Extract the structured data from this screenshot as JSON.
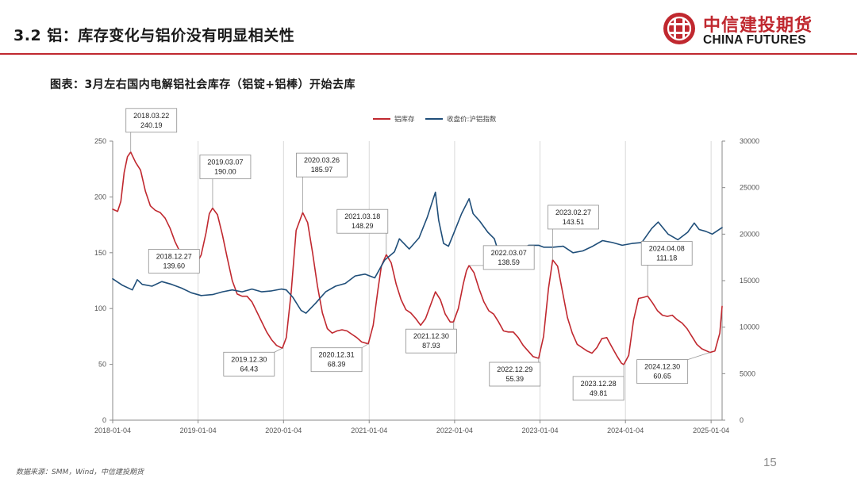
{
  "header": {
    "title": "3.2 铝：库存变化与铝价没有明显相关性",
    "logo_cn": "中信建投期货",
    "logo_en": "CHINA FUTURES",
    "logo_icon": "china-futures-logo-icon",
    "accent_color": "#c0282f"
  },
  "caption": "图表：3月左右国内电解铝社会库存（铝锭+铝棒）开始去库",
  "source": "数据来源：SMM，Wind，中信建投期货",
  "page_number": "15",
  "chart_data": {
    "type": "line",
    "title": "图表：3月左右国内电解铝社会库存（铝锭+铝棒）开始去库",
    "x_tick_labels": [
      "2018-01-04",
      "2019-01-04",
      "2020-01-04",
      "2021-01-04",
      "2022-01-04",
      "2023-01-04",
      "2024-01-04",
      "2025-01-04"
    ],
    "x_range": [
      "2018-01-04",
      "2025-02-20"
    ],
    "y_left": {
      "range": [
        0,
        250
      ],
      "ticks": [
        0,
        50,
        100,
        150,
        200,
        250
      ],
      "tick_labels": [
        "0",
        "50",
        "100",
        "150",
        "200",
        "250"
      ]
    },
    "y_right": {
      "range": [
        0,
        30000
      ],
      "ticks": [
        0,
        5000,
        10000,
        15000,
        20000,
        25000,
        30000
      ],
      "tick_labels": [
        "0",
        "5000",
        "10000",
        "15000",
        "20000",
        "25000",
        "30000"
      ]
    },
    "vertical_gridlines": true,
    "horizontal_gridlines": false,
    "legend_position": "top-center",
    "series": [
      {
        "name": "铝库存",
        "axis": "left",
        "color": "#c0282f",
        "points": [
          [
            "2018-01-04",
            189
          ],
          [
            "2018-01-25",
            187
          ],
          [
            "2018-02-08",
            196
          ],
          [
            "2018-02-22",
            222
          ],
          [
            "2018-03-08",
            236
          ],
          [
            "2018-03-22",
            240.19
          ],
          [
            "2018-04-12",
            231
          ],
          [
            "2018-05-03",
            224
          ],
          [
            "2018-05-24",
            205
          ],
          [
            "2018-06-14",
            192
          ],
          [
            "2018-07-05",
            188
          ],
          [
            "2018-07-26",
            186
          ],
          [
            "2018-08-16",
            181
          ],
          [
            "2018-09-06",
            172
          ],
          [
            "2018-09-27",
            160
          ],
          [
            "2018-10-18",
            151
          ],
          [
            "2018-11-08",
            143
          ],
          [
            "2018-12-06",
            139
          ],
          [
            "2018-12-27",
            139.6
          ],
          [
            "2019-01-17",
            148
          ],
          [
            "2019-02-07",
            168
          ],
          [
            "2019-02-21",
            185
          ],
          [
            "2019-03-07",
            190.0
          ],
          [
            "2019-03-28",
            184
          ],
          [
            "2019-04-18",
            166
          ],
          [
            "2019-05-09",
            145
          ],
          [
            "2019-05-30",
            125
          ],
          [
            "2019-06-20",
            113
          ],
          [
            "2019-07-11",
            111
          ],
          [
            "2019-08-01",
            111
          ],
          [
            "2019-08-22",
            106
          ],
          [
            "2019-09-12",
            97
          ],
          [
            "2019-10-03",
            88
          ],
          [
            "2019-10-24",
            79
          ],
          [
            "2019-11-14",
            72
          ],
          [
            "2019-12-05",
            67
          ],
          [
            "2019-12-30",
            64.43
          ],
          [
            "2020-01-16",
            74
          ],
          [
            "2020-02-06",
            115
          ],
          [
            "2020-02-27",
            170
          ],
          [
            "2020-03-26",
            185.97
          ],
          [
            "2020-04-16",
            177
          ],
          [
            "2020-05-07",
            150
          ],
          [
            "2020-05-28",
            120
          ],
          [
            "2020-06-18",
            96
          ],
          [
            "2020-07-09",
            82
          ],
          [
            "2020-07-30",
            78
          ],
          [
            "2020-08-20",
            80
          ],
          [
            "2020-09-10",
            81
          ],
          [
            "2020-10-01",
            80
          ],
          [
            "2020-10-22",
            77
          ],
          [
            "2020-11-12",
            74
          ],
          [
            "2020-12-03",
            70
          ],
          [
            "2020-12-31",
            68.39
          ],
          [
            "2021-01-21",
            85
          ],
          [
            "2021-02-11",
            118
          ],
          [
            "2021-02-25",
            138
          ],
          [
            "2021-03-18",
            148.29
          ],
          [
            "2021-04-08",
            141
          ],
          [
            "2021-04-29",
            122
          ],
          [
            "2021-05-20",
            108
          ],
          [
            "2021-06-10",
            99
          ],
          [
            "2021-07-01",
            96
          ],
          [
            "2021-07-22",
            91
          ],
          [
            "2021-08-12",
            85
          ],
          [
            "2021-09-02",
            91
          ],
          [
            "2021-09-23",
            103
          ],
          [
            "2021-10-14",
            115
          ],
          [
            "2021-11-04",
            108
          ],
          [
            "2021-11-25",
            95
          ],
          [
            "2021-12-16",
            88
          ],
          [
            "2021-12-30",
            87.93
          ],
          [
            "2022-01-20",
            100
          ],
          [
            "2022-02-10",
            122
          ],
          [
            "2022-02-24",
            134
          ],
          [
            "2022-03-07",
            138.59
          ],
          [
            "2022-03-28",
            132
          ],
          [
            "2022-04-18",
            118
          ],
          [
            "2022-05-09",
            106
          ],
          [
            "2022-05-30",
            98
          ],
          [
            "2022-06-20",
            95
          ],
          [
            "2022-07-11",
            88
          ],
          [
            "2022-08-01",
            80
          ],
          [
            "2022-08-22",
            79
          ],
          [
            "2022-09-12",
            79
          ],
          [
            "2022-10-03",
            74
          ],
          [
            "2022-10-24",
            67
          ],
          [
            "2022-11-14",
            62
          ],
          [
            "2022-12-05",
            57
          ],
          [
            "2022-12-29",
            55.39
          ],
          [
            "2023-01-19",
            75
          ],
          [
            "2023-02-09",
            118
          ],
          [
            "2023-02-27",
            143.51
          ],
          [
            "2023-03-20",
            138
          ],
          [
            "2023-04-10",
            115
          ],
          [
            "2023-05-01",
            92
          ],
          [
            "2023-05-22",
            78
          ],
          [
            "2023-06-12",
            68
          ],
          [
            "2023-07-03",
            65
          ],
          [
            "2023-07-24",
            62
          ],
          [
            "2023-08-14",
            60
          ],
          [
            "2023-09-04",
            65
          ],
          [
            "2023-09-25",
            73
          ],
          [
            "2023-10-16",
            74
          ],
          [
            "2023-11-06",
            66
          ],
          [
            "2023-11-27",
            58
          ],
          [
            "2023-12-18",
            51
          ],
          [
            "2023-12-28",
            49.81
          ],
          [
            "2024-01-18",
            58
          ],
          [
            "2024-02-08",
            90
          ],
          [
            "2024-02-29",
            109
          ],
          [
            "2024-03-21",
            110
          ],
          [
            "2024-04-08",
            111.18
          ],
          [
            "2024-04-29",
            105
          ],
          [
            "2024-05-20",
            98
          ],
          [
            "2024-06-10",
            94
          ],
          [
            "2024-07-01",
            93
          ],
          [
            "2024-07-22",
            94
          ],
          [
            "2024-08-12",
            90
          ],
          [
            "2024-09-02",
            87
          ],
          [
            "2024-09-23",
            82
          ],
          [
            "2024-10-14",
            75
          ],
          [
            "2024-11-04",
            68
          ],
          [
            "2024-11-25",
            64
          ],
          [
            "2024-12-16",
            62
          ],
          [
            "2024-12-30",
            60.65
          ],
          [
            "2025-01-20",
            62
          ],
          [
            "2025-02-10",
            78
          ],
          [
            "2025-02-20",
            102
          ]
        ]
      },
      {
        "name": "收盘价:沪铝指数",
        "axis": "right",
        "color": "#1f4e79",
        "points": [
          [
            "2018-01-04",
            15200
          ],
          [
            "2018-02-15",
            14500
          ],
          [
            "2018-03-29",
            14000
          ],
          [
            "2018-04-19",
            15100
          ],
          [
            "2018-05-10",
            14600
          ],
          [
            "2018-06-21",
            14400
          ],
          [
            "2018-08-02",
            14900
          ],
          [
            "2018-09-13",
            14600
          ],
          [
            "2018-10-25",
            14200
          ],
          [
            "2018-12-06",
            13700
          ],
          [
            "2019-01-17",
            13400
          ],
          [
            "2019-03-07",
            13500
          ],
          [
            "2019-04-18",
            13800
          ],
          [
            "2019-05-30",
            14000
          ],
          [
            "2019-07-11",
            13800
          ],
          [
            "2019-08-22",
            14100
          ],
          [
            "2019-10-03",
            13800
          ],
          [
            "2019-11-14",
            13900
          ],
          [
            "2019-12-26",
            14100
          ],
          [
            "2020-01-16",
            14000
          ],
          [
            "2020-02-13",
            13200
          ],
          [
            "2020-03-19",
            11800
          ],
          [
            "2020-04-09",
            11500
          ],
          [
            "2020-05-21",
            12600
          ],
          [
            "2020-07-02",
            13800
          ],
          [
            "2020-08-13",
            14400
          ],
          [
            "2020-09-24",
            14700
          ],
          [
            "2020-11-05",
            15500
          ],
          [
            "2020-12-17",
            15700
          ],
          [
            "2021-01-28",
            15300
          ],
          [
            "2021-03-11",
            17200
          ],
          [
            "2021-04-22",
            18100
          ],
          [
            "2021-05-13",
            19500
          ],
          [
            "2021-06-24",
            18400
          ],
          [
            "2021-08-05",
            19600
          ],
          [
            "2021-09-09",
            21800
          ],
          [
            "2021-10-14",
            24500
          ],
          [
            "2021-10-28",
            21500
          ],
          [
            "2021-11-18",
            19000
          ],
          [
            "2021-12-09",
            18700
          ],
          [
            "2021-12-30",
            20000
          ],
          [
            "2022-02-03",
            22200
          ],
          [
            "2022-03-07",
            23800
          ],
          [
            "2022-03-24",
            22200
          ],
          [
            "2022-04-21",
            21400
          ],
          [
            "2022-05-26",
            20200
          ],
          [
            "2022-06-23",
            19500
          ],
          [
            "2022-07-14",
            17800
          ],
          [
            "2022-08-25",
            18200
          ],
          [
            "2022-10-06",
            18300
          ],
          [
            "2022-11-17",
            18800
          ],
          [
            "2022-12-29",
            18800
          ],
          [
            "2023-01-19",
            18600
          ],
          [
            "2023-03-02",
            18600
          ],
          [
            "2023-04-13",
            18700
          ],
          [
            "2023-05-25",
            18000
          ],
          [
            "2023-07-06",
            18200
          ],
          [
            "2023-08-17",
            18700
          ],
          [
            "2023-09-28",
            19300
          ],
          [
            "2023-11-09",
            19100
          ],
          [
            "2023-12-21",
            18800
          ],
          [
            "2024-02-01",
            19000
          ],
          [
            "2024-03-14",
            19100
          ],
          [
            "2024-04-25",
            20600
          ],
          [
            "2024-05-23",
            21300
          ],
          [
            "2024-07-04",
            20000
          ],
          [
            "2024-08-15",
            19400
          ],
          [
            "2024-09-26",
            20200
          ],
          [
            "2024-10-24",
            21200
          ],
          [
            "2024-11-14",
            20500
          ],
          [
            "2024-12-12",
            20300
          ],
          [
            "2025-01-09",
            20000
          ],
          [
            "2025-02-20",
            20700
          ]
        ]
      }
    ],
    "annotations": [
      {
        "date_label": "2018.03.22",
        "value": "240.19",
        "x": "2018-03-22",
        "y": 240.19
      },
      {
        "date_label": "2018.12.27",
        "value": "139.60",
        "x": "2018-12-27",
        "y": 139.6
      },
      {
        "date_label": "2019.03.07",
        "value": "190.00",
        "x": "2019-03-07",
        "y": 190.0
      },
      {
        "date_label": "2019.12.30",
        "value": "64.43",
        "x": "2019-12-30",
        "y": 64.43
      },
      {
        "date_label": "2020.03.26",
        "value": "185.97",
        "x": "2020-03-26",
        "y": 185.97
      },
      {
        "date_label": "2020.12.31",
        "value": "68.39",
        "x": "2020-12-31",
        "y": 68.39
      },
      {
        "date_label": "2021.03.18",
        "value": "148.29",
        "x": "2021-03-18",
        "y": 148.29
      },
      {
        "date_label": "2021.12.30",
        "value": "87.93",
        "x": "2021-12-30",
        "y": 87.93
      },
      {
        "date_label": "2022.03.07",
        "value": "138.59",
        "x": "2022-03-07",
        "y": 138.59
      },
      {
        "date_label": "2022.12.29",
        "value": "55.39",
        "x": "2022-12-29",
        "y": 55.39
      },
      {
        "date_label": "2023.02.27",
        "value": "143.51",
        "x": "2023-02-27",
        "y": 143.51
      },
      {
        "date_label": "2023.12.28",
        "value": "49.81",
        "x": "2023-12-28",
        "y": 49.81
      },
      {
        "date_label": "2024.04.08",
        "value": "111.18",
        "x": "2024-04-08",
        "y": 111.18
      },
      {
        "date_label": "2024.12.30",
        "value": "60.65",
        "x": "2024-12-30",
        "y": 60.65
      }
    ]
  }
}
